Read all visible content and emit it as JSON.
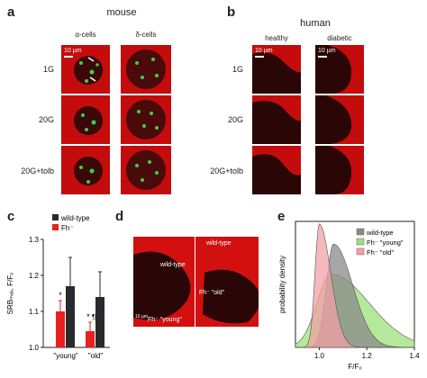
{
  "panels": {
    "a": {
      "letter": "a",
      "species": "mouse",
      "columns": [
        "α-cells",
        "δ-cells"
      ],
      "rows": [
        "1G",
        "20G",
        "20G+tolb"
      ],
      "scale_bar": "10 µm"
    },
    "b": {
      "letter": "b",
      "species": "human",
      "columns": [
        "healthy",
        "diabetic"
      ],
      "rows": [
        "1G",
        "20G",
        "20G+tolb"
      ],
      "scale_bar": "10 µm"
    },
    "c": {
      "letter": "c"
    },
    "d": {
      "letter": "d",
      "label_wt": "wild-type",
      "label_young": "Fh⁻ \"young\"",
      "label_old": "Fh⁻ \"old\"",
      "scale_bar": "10 µm"
    },
    "e": {
      "letter": "e"
    }
  },
  "colors": {
    "red": "#d80e0e",
    "green": "#3fd13f",
    "wt_bar": "#2a2a2e",
    "fh_bar": "#e8201e",
    "density_wt": "#8a8a8a",
    "density_young": "#9be07a",
    "density_old": "#f2a0a6"
  },
  "chart_data": [
    {
      "type": "bar",
      "ylabel": "SRBₘₐₓ, F/F₀",
      "ylim": [
        1.0,
        1.3
      ],
      "yticks": [
        "1.0",
        "1.1",
        "1.2",
        "1.3"
      ],
      "categories": [
        "\"young\"",
        "\"old\""
      ],
      "legend": [
        "wild-type",
        "Fh⁻"
      ],
      "series": [
        {
          "name": "wild-type",
          "values": [
            1.17,
            1.14
          ],
          "errors": [
            0.08,
            0.07
          ],
          "color": "#2a2a2e"
        },
        {
          "name": "Fh⁻",
          "values": [
            1.1,
            1.045
          ],
          "errors": [
            0.03,
            0.025
          ],
          "color": "#e8201e"
        }
      ],
      "annotations": [
        "*",
        "*",
        "¶"
      ]
    },
    {
      "type": "area",
      "xlabel": "F/F₀",
      "ylabel": "probability density",
      "xlim": [
        0.9,
        1.4
      ],
      "xticks": [
        "1.0",
        "1.2",
        "1.4"
      ],
      "legend": [
        "wild-type",
        "Fh⁻ \"young\"",
        "Fh⁻ \"old\""
      ],
      "series": [
        {
          "name": "wild-type",
          "color": "#8a8a8a",
          "peak_x": 1.06,
          "peak_density": 0.82,
          "sd": 0.05
        },
        {
          "name": "Fh⁻ \"young\"",
          "color": "#9be07a",
          "peak_x": 1.05,
          "peak_density": 0.58,
          "sd": 0.1
        },
        {
          "name": "Fh⁻ \"old\"",
          "color": "#f2a0a6",
          "peak_x": 1.0,
          "peak_density": 0.98,
          "sd": 0.03
        }
      ]
    }
  ]
}
